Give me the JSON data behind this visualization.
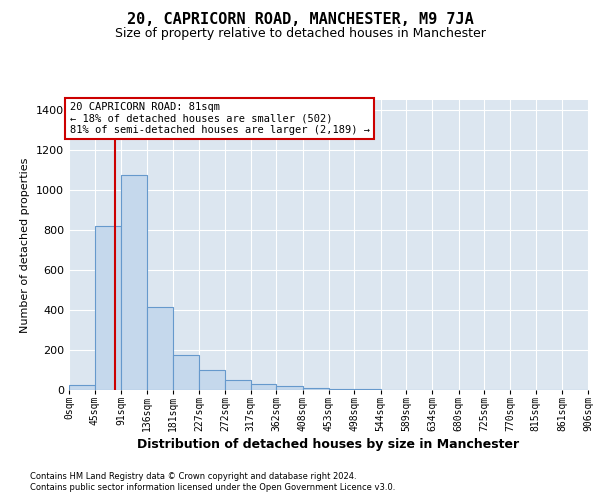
{
  "title": "20, CAPRICORN ROAD, MANCHESTER, M9 7JA",
  "subtitle": "Size of property relative to detached houses in Manchester",
  "xlabel": "Distribution of detached houses by size in Manchester",
  "ylabel": "Number of detached properties",
  "footnote1": "Contains HM Land Registry data © Crown copyright and database right 2024.",
  "footnote2": "Contains public sector information licensed under the Open Government Licence v3.0.",
  "bar_edges": [
    0,
    45,
    91,
    136,
    181,
    227,
    272,
    317,
    362,
    408,
    453,
    498,
    544,
    589,
    634,
    680,
    725,
    770,
    815,
    861,
    906
  ],
  "bar_heights": [
    25,
    820,
    1075,
    415,
    175,
    100,
    50,
    30,
    20,
    10,
    5,
    3,
    2,
    2,
    1,
    1,
    1,
    0,
    0,
    0
  ],
  "bar_color": "#c5d8ec",
  "bar_edge_color": "#6699cc",
  "bar_linewidth": 0.8,
  "property_line_x": 81,
  "property_line_color": "#cc0000",
  "annotation_text": "20 CAPRICORN ROAD: 81sqm\n← 18% of detached houses are smaller (502)\n81% of semi-detached houses are larger (2,189) →",
  "annotation_box_edgecolor": "#cc0000",
  "ylim": [
    0,
    1450
  ],
  "yticks": [
    0,
    200,
    400,
    600,
    800,
    1000,
    1200,
    1400
  ],
  "fig_bg_color": "#ffffff",
  "plot_bg_color": "#dce6f0",
  "grid_color": "#ffffff",
  "title_fontsize": 11,
  "subtitle_fontsize": 9,
  "xlabel_fontsize": 9,
  "ylabel_fontsize": 8,
  "ytick_fontsize": 8,
  "xtick_fontsize": 7,
  "footnote_fontsize": 6,
  "annotation_fontsize": 7.5
}
